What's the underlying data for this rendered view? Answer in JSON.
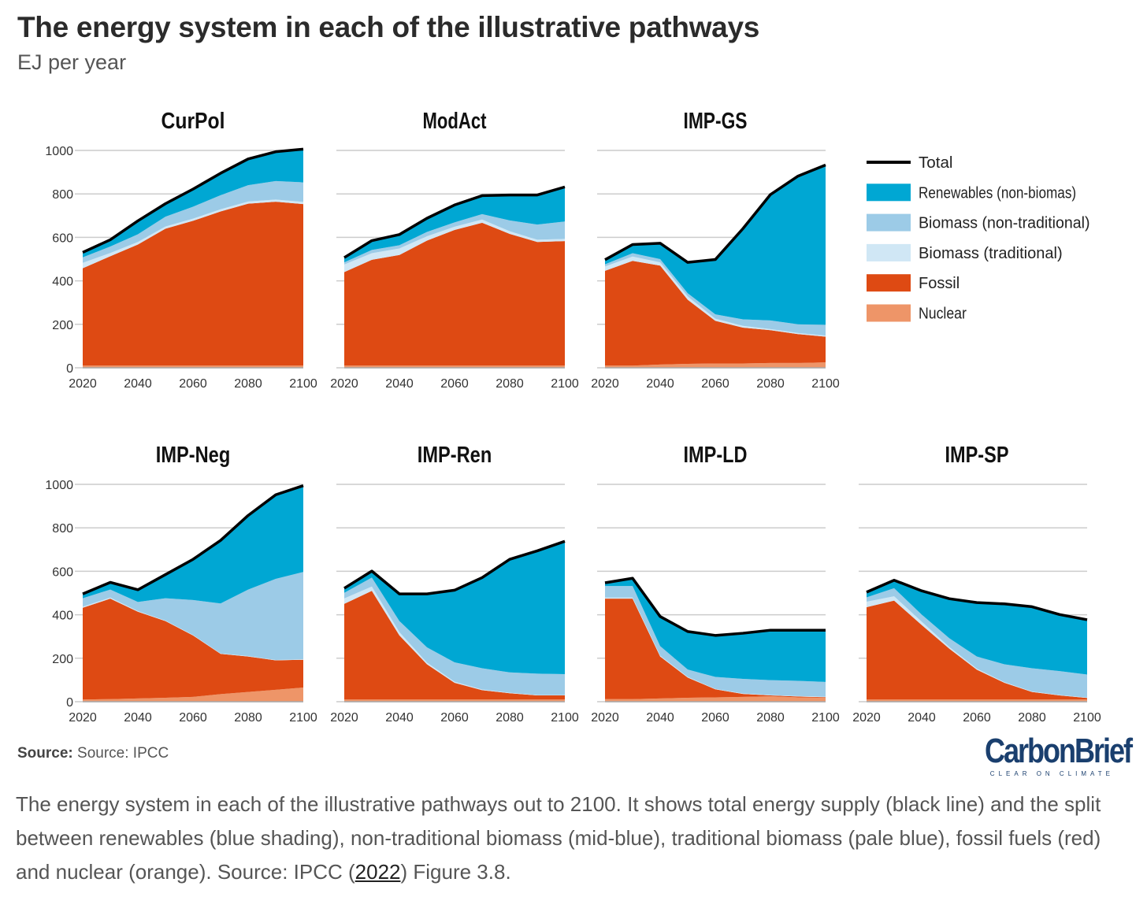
{
  "header": {
    "title": "The energy system in each of the illustrative pathways",
    "subtitle": "EJ per year"
  },
  "colors": {
    "renewables": "#00a7d3",
    "biomass_nontrad": "#9ccbe7",
    "biomass_trad": "#d0e7f5",
    "fossil": "#de4a13",
    "nuclear": "#ee9568",
    "total": "#000000",
    "grid": "#cccccc"
  },
  "chart_data": {
    "type": "area",
    "stacked": true,
    "ylabel": "EJ per year",
    "ylim": [
      0,
      1000
    ],
    "yticks": [
      0,
      200,
      400,
      600,
      800,
      1000
    ],
    "xlim": [
      2020,
      2100
    ],
    "xticks": [
      2020,
      2040,
      2060,
      2080,
      2100
    ],
    "x": [
      2020,
      2030,
      2040,
      2050,
      2060,
      2070,
      2080,
      2090,
      2100
    ],
    "grid": true,
    "legend": {
      "placement": "right",
      "entries": [
        {
          "key": "total",
          "label": "Total"
        },
        {
          "key": "renewables",
          "label": "Renewables (non-biomas)"
        },
        {
          "key": "biomass_nontrad",
          "label": "Biomass (non-traditional)"
        },
        {
          "key": "biomass_trad",
          "label": "Biomass (traditional)"
        },
        {
          "key": "fossil",
          "label": "Fossil"
        },
        {
          "key": "nuclear",
          "label": "Nuclear"
        }
      ]
    },
    "panels": [
      {
        "title": "CurPol",
        "row": 0,
        "col": 0,
        "nuclear": [
          10,
          10,
          10,
          10,
          10,
          10,
          10,
          10,
          10
        ],
        "fossil": [
          448,
          503,
          557,
          630,
          666,
          709,
          745,
          754,
          743
        ],
        "biomass_trad": [
          25,
          15,
          12,
          10,
          10,
          10,
          10,
          10,
          10
        ],
        "biomass_nontrad": [
          25,
          30,
          35,
          45,
          55,
          65,
          75,
          85,
          90
        ],
        "renewables": [
          23,
          31,
          62,
          60,
          81,
          101,
          121,
          135,
          153
        ]
      },
      {
        "title": "ModAct",
        "row": 0,
        "col": 1,
        "nuclear": [
          10,
          10,
          10,
          10,
          10,
          10,
          10,
          10,
          10
        ],
        "fossil": [
          430,
          487,
          509,
          575,
          624,
          657,
          606,
          569,
          573
        ],
        "biomass_trad": [
          35,
          30,
          30,
          20,
          15,
          15,
          12,
          10,
          10
        ],
        "biomass_nontrad": [
          10,
          15,
          15,
          20,
          20,
          25,
          50,
          70,
          80
        ],
        "renewables": [
          22,
          43,
          49,
          63,
          80,
          85,
          117,
          136,
          159
        ]
      },
      {
        "title": "IMP-GS",
        "row": 0,
        "col": 2,
        "nuclear": [
          10,
          10,
          15,
          18,
          20,
          20,
          22,
          22,
          25
        ],
        "fossil": [
          436,
          482,
          455,
          295,
          196,
          165,
          151,
          133,
          118
        ],
        "biomass_trad": [
          20,
          20,
          15,
          15,
          10,
          8,
          5,
          5,
          5
        ],
        "biomass_nontrad": [
          10,
          15,
          15,
          15,
          20,
          30,
          40,
          40,
          50
        ],
        "renewables": [
          21,
          40,
          73,
          142,
          252,
          417,
          579,
          682,
          735
        ]
      },
      {
        "title": "IMP-Neg",
        "row": 1,
        "col": 0,
        "nuclear": [
          10,
          12,
          15,
          18,
          22,
          35,
          45,
          55,
          65
        ],
        "fossil": [
          422,
          462,
          399,
          353,
          283,
          185,
          163,
          135,
          128
        ],
        "biomass_trad": [
          5,
          5,
          3,
          2,
          2,
          2,
          2,
          2,
          2
        ],
        "biomass_nontrad": [
          39,
          37,
          42,
          103,
          161,
          230,
          306,
          373,
          402
        ],
        "renewables": [
          20,
          33,
          56,
          109,
          187,
          290,
          341,
          387,
          397
        ]
      },
      {
        "title": "IMP-Ren",
        "row": 1,
        "col": 1,
        "nuclear": [
          10,
          10,
          10,
          10,
          10,
          10,
          10,
          10,
          10
        ],
        "fossil": [
          440,
          500,
          295,
          162,
          77,
          43,
          29,
          19,
          19
        ],
        "biomass_trad": [
          25,
          20,
          15,
          8,
          5,
          3,
          2,
          2,
          2
        ],
        "biomass_nontrad": [
          26,
          41,
          51,
          70,
          89,
          98,
          94,
          98,
          96
        ],
        "renewables": [
          21,
          30,
          125,
          246,
          332,
          417,
          520,
          565,
          611
        ]
      },
      {
        "title": "IMP-LD",
        "row": 1,
        "col": 2,
        "nuclear": [
          12,
          12,
          15,
          18,
          20,
          22,
          25,
          20,
          18
        ],
        "fossil": [
          462,
          462,
          193,
          93,
          37,
          14,
          4,
          4,
          3
        ],
        "biomass_trad": [
          5,
          5,
          4,
          3,
          2,
          2,
          2,
          2,
          2
        ],
        "biomass_nontrad": [
          53,
          53,
          44,
          34,
          55,
          67,
          68,
          70,
          68
        ],
        "renewables": [
          15,
          36,
          136,
          175,
          191,
          210,
          230,
          233,
          238
        ]
      },
      {
        "title": "IMP-SP",
        "row": 1,
        "col": 3,
        "nuclear": [
          10,
          10,
          10,
          10,
          10,
          10,
          10,
          10,
          10
        ],
        "fossil": [
          425,
          455,
          343,
          234,
          137,
          77,
          35,
          19,
          7
        ],
        "biomass_trad": [
          25,
          20,
          15,
          8,
          5,
          3,
          2,
          2,
          2
        ],
        "biomass_nontrad": [
          20,
          37,
          33,
          40,
          56,
          82,
          107,
          110,
          106
        ],
        "renewables": [
          24,
          37,
          109,
          182,
          248,
          278,
          283,
          260,
          252
        ]
      }
    ]
  },
  "footer": {
    "source_label": "Source:",
    "source_text": "Source: IPCC",
    "logo_name": "CarbonBrief",
    "logo_tagline": "CLEAR ON CLIMATE"
  },
  "caption": {
    "text_before": "The energy system in each of the illustrative pathways out to 2100. It shows total energy supply (black line) and the split between renewables (blue shading), non-traditional biomass (mid-blue), traditional biomass (pale blue), fossil fuels (red) and nuclear (orange). Source: IPCC (",
    "link_text": "2022",
    "text_after": ") Figure 3.8."
  }
}
